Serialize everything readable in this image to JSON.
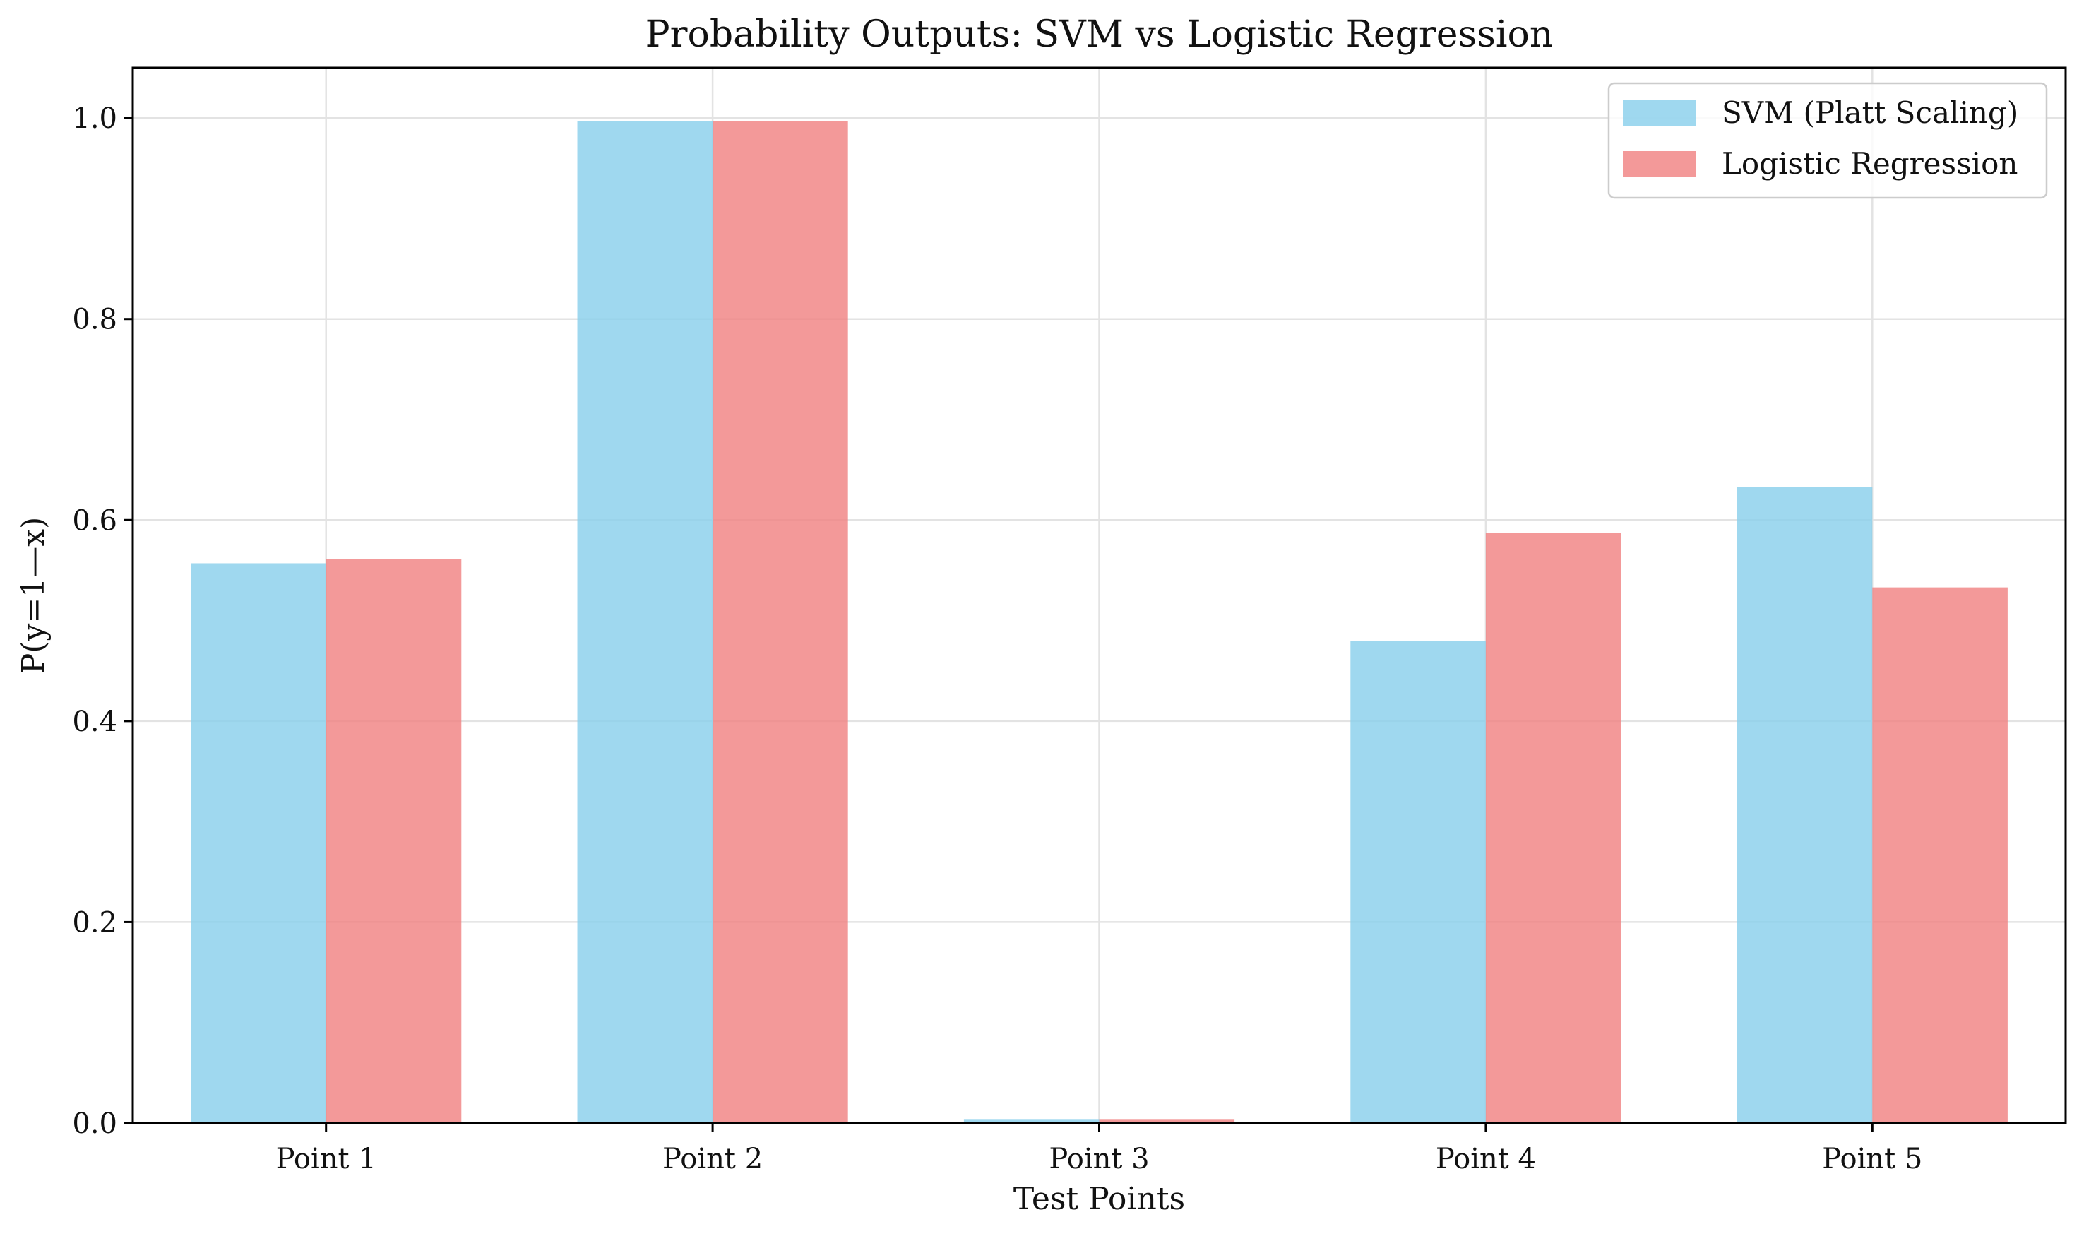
{
  "chart_data": {
    "type": "bar",
    "title": "Probability Outputs: SVM vs Logistic Regression",
    "xlabel": "Test Points",
    "ylabel": "P(y=1—x)",
    "categories": [
      "Point 1",
      "Point 2",
      "Point 3",
      "Point 4",
      "Point 5"
    ],
    "series": [
      {
        "name": "SVM (Platt Scaling)",
        "color": "#87ceeb",
        "values": [
          0.557,
          0.997,
          0.004,
          0.48,
          0.633
        ]
      },
      {
        "name": "Logistic Regression",
        "color": "#f08080",
        "values": [
          0.561,
          0.997,
          0.004,
          0.587,
          0.533
        ]
      }
    ],
    "ylim": [
      0,
      1.05
    ],
    "yticks": [
      0.0,
      0.2,
      0.4,
      0.6,
      0.8,
      1.0
    ],
    "ytick_labels": [
      "0.0",
      "0.2",
      "0.4",
      "0.6",
      "0.8",
      "1.0"
    ],
    "grid": true,
    "legend_position": "top-right",
    "bar_opacity": 0.8
  }
}
